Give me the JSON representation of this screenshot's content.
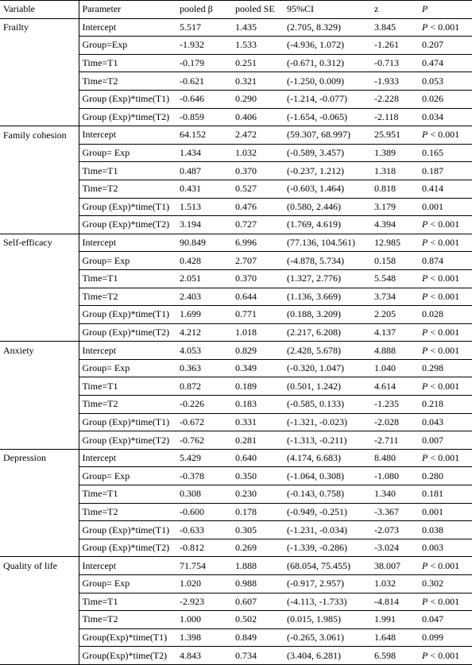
{
  "headers": {
    "variable": "Variable",
    "parameter": "Parameter",
    "beta": "pooled β",
    "se": "pooled SE",
    "ci": "95%CI",
    "z": "z",
    "p": "P"
  },
  "groups": [
    {
      "variable": "Frailty",
      "rows": [
        {
          "parameter": "Intercept",
          "beta": "5.517",
          "se": "1.435",
          "ci": "(2.705, 8.329)",
          "z": "3.845",
          "p_prefix": "P",
          "p_value": " < 0.001"
        },
        {
          "parameter": "Group=Exp",
          "beta": "-1.932",
          "se": "1.533",
          "ci": "(-4.936, 1.072)",
          "z": "-1.261",
          "p_prefix": "",
          "p_value": "0.207"
        },
        {
          "parameter": "Time=T1",
          "beta": "-0.179",
          "se": "0.251",
          "ci": "(-0.671, 0.312)",
          "z": "-0.713",
          "p_prefix": "",
          "p_value": "0.474"
        },
        {
          "parameter": "Time=T2",
          "beta": "-0.621",
          "se": "0.321",
          "ci": "(-1.250, 0.009)",
          "z": "-1.933",
          "p_prefix": "",
          "p_value": "0.053"
        },
        {
          "parameter": "Group (Exp)*time(T1)",
          "beta": "-0.646",
          "se": "0.290",
          "ci": "(-1.214, -0.077)",
          "z": "-2.228",
          "p_prefix": "",
          "p_value": "0.026"
        },
        {
          "parameter": "Group (Exp)*time(T2)",
          "beta": "-0.859",
          "se": "0.406",
          "ci": "(-1.654, -0.065)",
          "z": "-2.118",
          "p_prefix": "",
          "p_value": "0.034"
        }
      ]
    },
    {
      "variable": "Family cohesion",
      "rows": [
        {
          "parameter": "Intercept",
          "beta": "64.152",
          "se": "2.472",
          "ci": "(59.307, 68.997)",
          "z": "25.951",
          "p_prefix": "P",
          "p_value": " < 0.001"
        },
        {
          "parameter": "Group= Exp",
          "beta": "1.434",
          "se": "1.032",
          "ci": "(-0.589, 3.457)",
          "z": "1.389",
          "p_prefix": "",
          "p_value": "0.165"
        },
        {
          "parameter": "Time=T1",
          "beta": "0.487",
          "se": "0.370",
          "ci": "(-0.237, 1.212)",
          "z": "1.318",
          "p_prefix": "",
          "p_value": "0.187"
        },
        {
          "parameter": "Time=T2",
          "beta": "0.431",
          "se": "0.527",
          "ci": "(-0.603, 1.464)",
          "z": "0.818",
          "p_prefix": "",
          "p_value": "0.414"
        },
        {
          "parameter": "Group (Exp)*time(T1)",
          "beta": "1.513",
          "se": "0.476",
          "ci": "(0.580, 2.446)",
          "z": "3.179",
          "p_prefix": "",
          "p_value": "0.001"
        },
        {
          "parameter": "Group (Exp)*time(T2)",
          "beta": "3.194",
          "se": "0.727",
          "ci": "(1.769, 4.619)",
          "z": "4.394",
          "p_prefix": "P",
          "p_value": " < 0.001"
        }
      ]
    },
    {
      "variable": "Self-efficacy",
      "rows": [
        {
          "parameter": "Intercept",
          "beta": "90.849",
          "se": "6.996",
          "ci": "(77.136, 104.561)",
          "z": "12.985",
          "p_prefix": "P",
          "p_value": " < 0.001"
        },
        {
          "parameter": "Group= Exp",
          "beta": "0.428",
          "se": "2.707",
          "ci": "(-4.878, 5.734)",
          "z": "0.158",
          "p_prefix": "",
          "p_value": "0.874"
        },
        {
          "parameter": "Time=T1",
          "beta": "2.051",
          "se": "0.370",
          "ci": "(1.327, 2.776)",
          "z": "5.548",
          "p_prefix": "P",
          "p_value": " < 0.001"
        },
        {
          "parameter": "Time=T2",
          "beta": "2.403",
          "se": "0.644",
          "ci": "(1.136, 3.669)",
          "z": "3.734",
          "p_prefix": "P",
          "p_value": " < 0.001"
        },
        {
          "parameter": "Group (Exp)*time(T1)",
          "beta": "1.699",
          "se": "0.771",
          "ci": "(0.188, 3.209)",
          "z": "2.205",
          "p_prefix": "",
          "p_value": "0.028"
        },
        {
          "parameter": "Group (Exp)*time(T2)",
          "beta": "4.212",
          "se": "1.018",
          "ci": "(2.217, 6.208)",
          "z": "4.137",
          "p_prefix": "P",
          "p_value": " < 0.001"
        }
      ]
    },
    {
      "variable": "Anxiety",
      "rows": [
        {
          "parameter": "Intercept",
          "beta": "4.053",
          "se": "0.829",
          "ci": "(2.428, 5.678)",
          "z": "4.888",
          "p_prefix": "P",
          "p_value": " < 0.001"
        },
        {
          "parameter": "Group= Exp",
          "beta": "0.363",
          "se": "0.349",
          "ci": "(-0.320, 1.047)",
          "z": "1.040",
          "p_prefix": "",
          "p_value": "0.298"
        },
        {
          "parameter": "Time=T1",
          "beta": "0.872",
          "se": "0.189",
          "ci": "(0.501, 1.242)",
          "z": "4.614",
          "p_prefix": "P",
          "p_value": " < 0.001"
        },
        {
          "parameter": "Time=T2",
          "beta": "-0.226",
          "se": "0.183",
          "ci": "(-0.585, 0.133)",
          "z": "-1.235",
          "p_prefix": "",
          "p_value": "0.218"
        },
        {
          "parameter": "Group (Exp)*time(T1)",
          "beta": "-0.672",
          "se": "0.331",
          "ci": "(-1.321, -0.023)",
          "z": "-2.028",
          "p_prefix": "",
          "p_value": "0.043"
        },
        {
          "parameter": "Group (Exp)*time(T2)",
          "beta": "-0.762",
          "se": "0.281",
          "ci": "(-1.313, -0.211)",
          "z": "-2.711",
          "p_prefix": "",
          "p_value": "0.007"
        }
      ]
    },
    {
      "variable": "Depression",
      "rows": [
        {
          "parameter": "Intercept",
          "beta": "5.429",
          "se": "0.640",
          "ci": "(4.174, 6.683)",
          "z": "8.480",
          "p_prefix": "P",
          "p_value": " < 0.001"
        },
        {
          "parameter": "Group= Exp",
          "beta": "-0.378",
          "se": "0.350",
          "ci": "(-1.064, 0.308)",
          "z": "-1.080",
          "p_prefix": "",
          "p_value": "0.280"
        },
        {
          "parameter": "Time=T1",
          "beta": "0.308",
          "se": "0.230",
          "ci": "(-0.143, 0.758)",
          "z": "1.340",
          "p_prefix": "",
          "p_value": "0.181"
        },
        {
          "parameter": "Time=T2",
          "beta": "-0.600",
          "se": "0.178",
          "ci": "(-0.949, -0.251)",
          "z": "-3.367",
          "p_prefix": "",
          "p_value": "0.001"
        },
        {
          "parameter": "Group (Exp)*time(T1)",
          "beta": "-0.633",
          "se": "0.305",
          "ci": "(-1.231, -0.034)",
          "z": "-2.073",
          "p_prefix": "",
          "p_value": "0.038"
        },
        {
          "parameter": "Group (Exp)*time(T2)",
          "beta": "-0.812",
          "se": "0.269",
          "ci": "(-1.339, -0.286)",
          "z": "-3.024",
          "p_prefix": "",
          "p_value": "0.003"
        }
      ]
    },
    {
      "variable": "Quality of life",
      "rows": [
        {
          "parameter": "Intercept",
          "beta": "71.754",
          "se": "1.888",
          "ci": "(68.054, 75.455)",
          "z": "38.007",
          "p_prefix": "P",
          "p_value": " < 0.001"
        },
        {
          "parameter": "Group= Exp",
          "beta": "1.020",
          "se": "0.988",
          "ci": "(-0.917, 2.957)",
          "z": "1.032",
          "p_prefix": "",
          "p_value": "0.302"
        },
        {
          "parameter": "Time=T1",
          "beta": "-2.923",
          "se": "0.607",
          "ci": "(-4.113, -1.733)",
          "z": "-4.814",
          "p_prefix": "P",
          "p_value": " < 0.001"
        },
        {
          "parameter": "Time=T2",
          "beta": "1.000",
          "se": "0.502",
          "ci": "(0.015, 1.985)",
          "z": "1.991",
          "p_prefix": "",
          "p_value": "0.047"
        },
        {
          "parameter": "Group(Exp)*time(T1)",
          "beta": "1.398",
          "se": "0.849",
          "ci": "(-0.265, 3.061)",
          "z": "1.648",
          "p_prefix": "",
          "p_value": "0.099"
        },
        {
          "parameter": "Group(Exp)*time(T2)",
          "beta": "4.843",
          "se": "0.734",
          "ci": "(3.404, 6.281)",
          "z": "6.598",
          "p_prefix": "P",
          "p_value": " < 0.001"
        }
      ]
    }
  ]
}
